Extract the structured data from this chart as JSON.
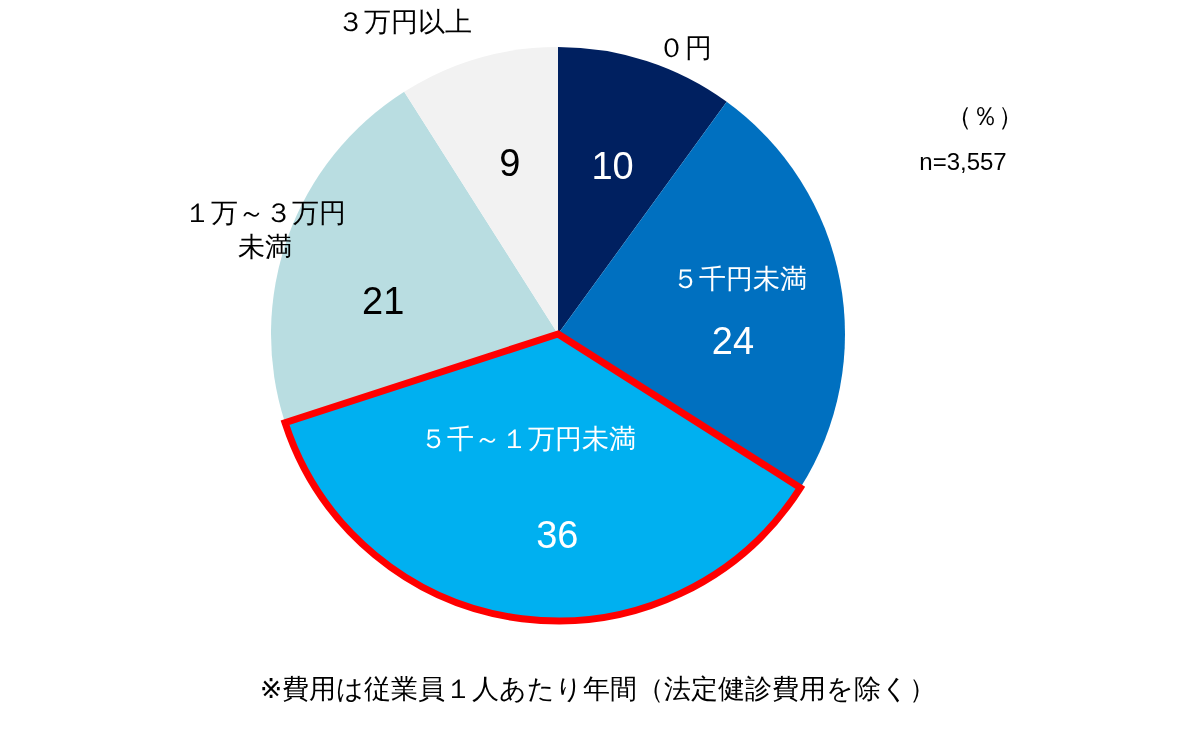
{
  "chart_data": {
    "type": "pie",
    "categories": [
      "０円",
      "５千円未満",
      "５千～１万円未満",
      "１万～３万円未満",
      "３万円以上"
    ],
    "values": [
      10,
      24,
      36,
      21,
      9
    ],
    "colors": [
      "#002060",
      "#0070c0",
      "#00b0f0",
      "#b9dde1",
      "#f2f2f2"
    ],
    "data_labels": true,
    "annotations": [
      "（％）",
      "n=3,557",
      "※費用は従業員１人あたり年間（法定健診費用を除く）"
    ]
  }
}
